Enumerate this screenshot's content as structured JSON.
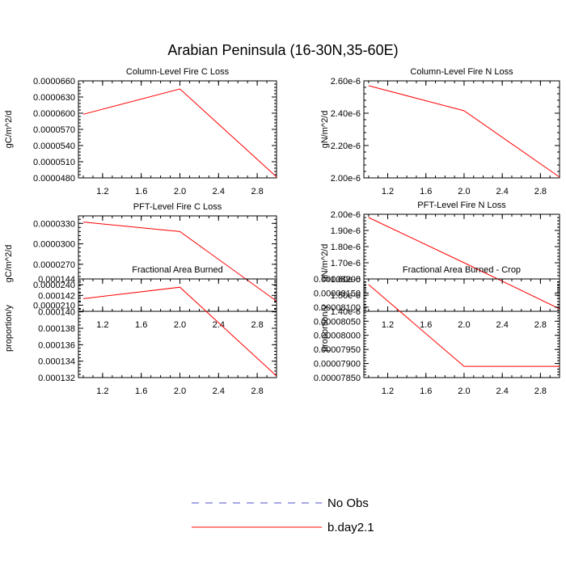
{
  "title": "Arabian Peninsula (16-30N,35-60E)",
  "colors": {
    "line": "#ff0000",
    "no_obs": "#4f4fcf"
  },
  "legend": [
    {
      "label": "No Obs",
      "style": "dashed",
      "color": "#4f4fcf"
    },
    {
      "label": "b.day2.1",
      "style": "solid",
      "color": "#ff0000"
    }
  ],
  "chart_data": [
    {
      "type": "line",
      "title": "Column-Level Fire C Loss",
      "ylabel": "gC/m^2/d",
      "xlim": [
        0.95,
        3.0
      ],
      "ylim": [
        4.8e-05,
        6.6e-05
      ],
      "xticks": [
        "1.2",
        "1.6",
        "2.0",
        "2.4",
        "2.8"
      ],
      "yticks": [
        "0.0000480",
        "0.0000510",
        "0.0000540",
        "0.0000570",
        "0.0000600",
        "0.0000630",
        "0.0000660"
      ],
      "series": [
        {
          "name": "b.day2.1",
          "x": [
            1,
            2,
            3
          ],
          "y": [
            5.98e-05,
            6.45e-05,
            4.82e-05
          ]
        }
      ]
    },
    {
      "type": "line",
      "title": "Column-Level Fire N Loss",
      "ylabel": "gN/m^2/d",
      "xlim": [
        0.95,
        3.0
      ],
      "ylim": [
        2e-06,
        2.6e-06
      ],
      "xticks": [
        "1.2",
        "1.6",
        "2.0",
        "2.4",
        "2.8"
      ],
      "yticks": [
        "2.00e-6",
        "2.20e-6",
        "2.40e-6",
        "2.60e-6"
      ],
      "series": [
        {
          "name": "b.day2.1",
          "x": [
            1,
            2,
            3
          ],
          "y": [
            2.57e-06,
            2.415e-06,
            2.005e-06
          ]
        }
      ]
    },
    {
      "type": "line",
      "title": "PFT-Level Fire C Loss",
      "ylabel": "gC/m^2/d",
      "xlim": [
        0.95,
        3.0
      ],
      "ylim": [
        2.01e-05,
        3.41e-05
      ],
      "xticks": [
        "1.2",
        "1.6",
        "2.0",
        "2.4",
        "2.8"
      ],
      "yticks": [
        "0.0000210",
        "0.0000240",
        "0.0000270",
        "0.0000300",
        "0.0000330"
      ],
      "series": [
        {
          "name": "b.day2.1",
          "x": [
            1,
            2,
            3
          ],
          "y": [
            3.32e-05,
            3.18e-05,
            2.16e-05
          ]
        }
      ]
    },
    {
      "type": "line",
      "title": "PFT-Level Fire N Loss",
      "ylabel": "gN/m^2/d",
      "xlim": [
        0.95,
        3.0
      ],
      "ylim": [
        1.4e-06,
        2e-06
      ],
      "xticks": [
        "1.2",
        "1.6",
        "2.0",
        "2.4",
        "2.8"
      ],
      "yticks": [
        "1.40e-6",
        "1.50e-6",
        "1.60e-6",
        "1.70e-6",
        "1.80e-6",
        "1.90e-6",
        "2.00e-6"
      ],
      "series": [
        {
          "name": "b.day2.1",
          "x": [
            1,
            2,
            3
          ],
          "y": [
            1.98e-06,
            1.7e-06,
            1.415e-06
          ]
        }
      ]
    },
    {
      "type": "line",
      "title": "Fractional Area Burned",
      "ylabel": "proportion/y",
      "xlim": [
        0.95,
        3.0
      ],
      "ylim": [
        0.000132,
        0.000144
      ],
      "xticks": [
        "1.2",
        "1.6",
        "2.0",
        "2.4",
        "2.8"
      ],
      "yticks": [
        "0.000132",
        "0.000134",
        "0.000136",
        "0.000138",
        "0.000140",
        "0.000142",
        "0.000144"
      ],
      "series": [
        {
          "name": "b.day2.1",
          "x": [
            1,
            2,
            3
          ],
          "y": [
            0.0001416,
            0.000143,
            0.0001322
          ]
        }
      ]
    },
    {
      "type": "line",
      "title": "Fractional Area Burned - Crop",
      "ylabel": "proportion/y",
      "xlim": [
        0.95,
        3.0
      ],
      "ylim": [
        7.85e-05,
        8.2e-05
      ],
      "xticks": [
        "1.2",
        "1.6",
        "2.0",
        "2.4",
        "2.8"
      ],
      "yticks": [
        "0.00007850",
        "0.00007900",
        "0.00007950",
        "0.00008000",
        "0.00008050",
        "0.00008100",
        "0.00008150",
        "0.00008200"
      ],
      "series": [
        {
          "name": "b.day2.1",
          "x": [
            1,
            2,
            3
          ],
          "y": [
            8.18e-05,
            7.89e-05,
            7.89e-05
          ]
        }
      ]
    }
  ]
}
